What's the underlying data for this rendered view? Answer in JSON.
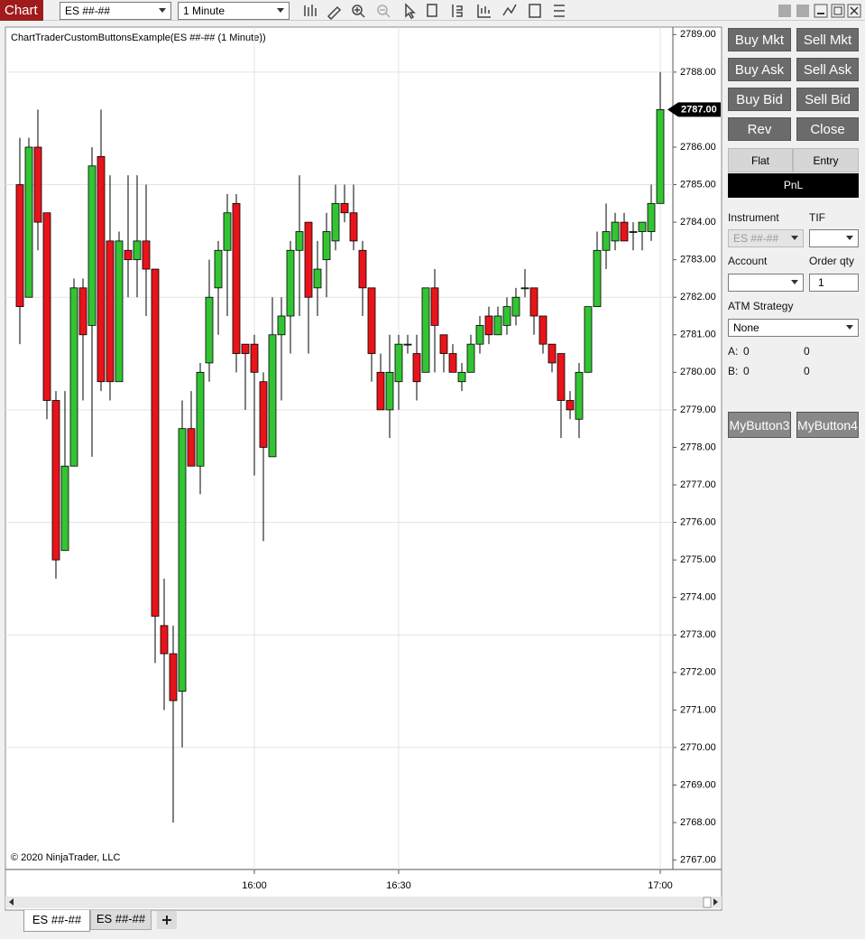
{
  "toolbar": {
    "title": "Chart",
    "instrument": "ES ##-##",
    "interval": "1 Minute"
  },
  "chart_data": {
    "type": "candlestick",
    "title": "ChartTraderCustomButtonsExample(ES ##-## (1 Minute))",
    "footer": "© 2020 NinjaTrader, LLC",
    "categories": [
      null,
      null,
      null,
      null,
      null,
      null,
      null,
      null,
      null,
      null,
      null,
      null,
      null,
      null,
      null,
      null,
      null,
      null,
      null,
      null,
      null,
      null,
      null,
      null,
      null,
      null,
      "16:00",
      null,
      null,
      null,
      null,
      null,
      null,
      null,
      null,
      null,
      null,
      null,
      null,
      null,
      null,
      null,
      "16:30",
      null,
      null,
      null,
      null,
      null,
      null,
      null,
      null,
      null,
      null,
      null,
      null,
      null,
      null,
      null,
      null,
      null,
      null,
      null,
      null,
      null,
      null,
      null,
      null,
      null,
      null,
      null,
      null,
      "17:00"
    ],
    "open": [
      2785,
      2782,
      2786,
      2784.25,
      2779.25,
      2775.25,
      2777.5,
      2782.25,
      2781.25,
      2785.75,
      2783.5,
      2779.75,
      2783.25,
      2783,
      2783.5,
      2782.75,
      2773.25,
      2772.5,
      2771.5,
      2778.5,
      2777.5,
      2780.25,
      2782.25,
      2783.25,
      2784.5,
      2780.75,
      2780.75,
      2779.75,
      2777.75,
      2781,
      2781.5,
      2783.25,
      2784,
      2782.25,
      2783,
      2783.5,
      2784.5,
      2784.25,
      2783.25,
      2782.25,
      2780,
      2779,
      2779.75,
      2780.75,
      2780.5,
      2780,
      2782.25,
      2781,
      2780.5,
      2779.75,
      2780,
      2780.75,
      2781.5,
      2781,
      2781.25,
      2781.5,
      2782.25,
      2782.25,
      2781.5,
      2780.75,
      2780.5,
      2779.25,
      2778.75,
      2780,
      2781.75,
      2783.25,
      2783.5,
      2784,
      2783.75,
      2783.75,
      2783.75,
      2784.5
    ],
    "high": [
      2786.25,
      2786.25,
      2787,
      2784.25,
      2779.5,
      2779.5,
      2782.5,
      2782.5,
      2786,
      2787,
      2785.25,
      2783.75,
      2785.25,
      2785.25,
      2785,
      2782.75,
      2774.5,
      2773.25,
      2779.25,
      2779.5,
      2780.25,
      2783,
      2783.5,
      2784.75,
      2784.75,
      2780.75,
      2781,
      2780,
      2782,
      2782,
      2783.5,
      2785.25,
      2784,
      2783.5,
      2784.25,
      2785,
      2785,
      2785,
      2783.5,
      2782.25,
      2780.5,
      2781,
      2781,
      2781,
      2781,
      2782.25,
      2782.75,
      2781,
      2780.75,
      2780.25,
      2781,
      2781.5,
      2781.75,
      2781.75,
      2782,
      2782.25,
      2782.75,
      2782.25,
      2781.5,
      2780.75,
      2780.5,
      2779.5,
      2780.25,
      2781.75,
      2783.75,
      2784.5,
      2784.25,
      2784.25,
      2784,
      2784,
      2785,
      2788
    ],
    "low": [
      2780.75,
      2782,
      2783.25,
      2778.75,
      2774.5,
      2775.25,
      2777.5,
      2779.25,
      2777.75,
      2779.5,
      2779.25,
      2779.75,
      2782,
      2782,
      2781.5,
      2772.25,
      2771,
      2768,
      2770,
      2777.5,
      2776.75,
      2779.75,
      2781,
      2781.5,
      2780,
      2779,
      2777.25,
      2775.5,
      2777.75,
      2779.25,
      2780.5,
      2781.5,
      2780.5,
      2781.5,
      2782,
      2783.25,
      2784,
      2783.25,
      2781.5,
      2779.75,
      2779,
      2778.25,
      2779,
      2780.5,
      2779.25,
      2780,
      2780,
      2780,
      2780,
      2779.5,
      2780,
      2780.5,
      2780.75,
      2781,
      2781,
      2781.25,
      2782,
      2781,
      2780.5,
      2780,
      2778.25,
      2778.75,
      2778.25,
      2780,
      2781.75,
      2782.75,
      2783.25,
      2783.5,
      2783.25,
      2783.25,
      2783.5,
      2784.5
    ],
    "close": [
      2781.75,
      2786,
      2784,
      2779.25,
      2775,
      2777.5,
      2782.25,
      2781,
      2785.5,
      2779.75,
      2779.75,
      2783.5,
      2783,
      2783.5,
      2782.75,
      2773.5,
      2772.5,
      2771.25,
      2778.5,
      2777.5,
      2780,
      2782,
      2783.25,
      2784.25,
      2780.5,
      2780.5,
      2780,
      2778,
      2781,
      2781.5,
      2783.25,
      2783.75,
      2782,
      2782.75,
      2783.75,
      2784.5,
      2784.25,
      2783.5,
      2782.25,
      2780.5,
      2779,
      2780,
      2780.75,
      2780.75,
      2779.75,
      2782.25,
      2781.25,
      2780.5,
      2780,
      2780,
      2780.75,
      2781.25,
      2781,
      2781.5,
      2781.75,
      2782,
      2782.25,
      2781.5,
      2780.75,
      2780.25,
      2779.25,
      2779,
      2780,
      2781.75,
      2783.25,
      2783.75,
      2784,
      2783.5,
      2783.75,
      2784,
      2784.5,
      2787
    ],
    "up_color": "#33c433",
    "down_color": "#e8141a",
    "ylim": [
      2766.75,
      2789.2
    ],
    "yticks": [
      {
        "value": 2767,
        "label": "2767.00"
      },
      {
        "value": 2768,
        "label": "2768.00"
      },
      {
        "value": 2769,
        "label": "2769.00"
      },
      {
        "value": 2770,
        "label": "2770.00"
      },
      {
        "value": 2771,
        "label": "2771.00"
      },
      {
        "value": 2772,
        "label": "2772.00"
      },
      {
        "value": 2773,
        "label": "2773.00"
      },
      {
        "value": 2774,
        "label": "2774.00"
      },
      {
        "value": 2775,
        "label": "2775.00"
      },
      {
        "value": 2776,
        "label": "2776.00"
      },
      {
        "value": 2777,
        "label": "2777.00"
      },
      {
        "value": 2778,
        "label": "2778.00"
      },
      {
        "value": 2779,
        "label": "2779.00"
      },
      {
        "value": 2780,
        "label": "2780.00"
      },
      {
        "value": 2781,
        "label": "2781.00"
      },
      {
        "value": 2782,
        "label": "2782.00"
      },
      {
        "value": 2783,
        "label": "2783.00"
      },
      {
        "value": 2784,
        "label": "2784.00"
      },
      {
        "value": 2785,
        "label": "2785.00"
      },
      {
        "value": 2786,
        "label": "2786.00"
      },
      {
        "value": 2787,
        "label": "2787.00"
      },
      {
        "value": 2788,
        "label": "2788.00"
      },
      {
        "value": 2789,
        "label": "2789.00"
      }
    ],
    "ygrid": [
      2770,
      2773,
      2776,
      2779,
      2782,
      2785,
      2788
    ],
    "grid": true,
    "last_price": {
      "value": 2787,
      "label": "2787.00"
    }
  },
  "chart_trader": {
    "buttons": [
      [
        "Buy Mkt",
        "Sell Mkt"
      ],
      [
        "Buy Ask",
        "Sell Ask"
      ],
      [
        "Buy Bid",
        "Sell Bid"
      ],
      [
        "Rev",
        "Close"
      ]
    ],
    "position": [
      "Flat",
      "Entry"
    ],
    "pnl": "PnL",
    "instrument_label": "Instrument",
    "tif_label": "TIF",
    "instrument": "ES ##-##",
    "account_label": "Account",
    "order_qty_label": "Order qty",
    "order_qty": "1",
    "atm_label": "ATM Strategy",
    "atm": "None",
    "a_row": [
      "A:",
      "0",
      "0"
    ],
    "b_row": [
      "B:",
      "0",
      "0"
    ],
    "custom_buttons": [
      "MyButton3",
      "MyButton4"
    ]
  },
  "tabs": [
    "ES ##-##",
    "ES ##-##"
  ]
}
